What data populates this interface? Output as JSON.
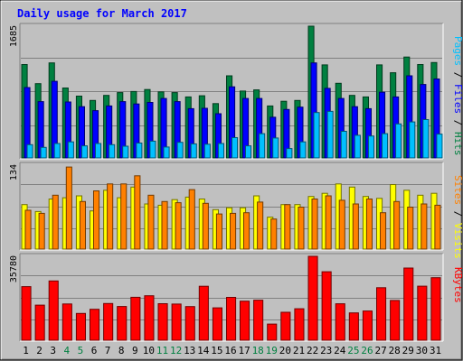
{
  "chart_data": [
    {
      "type": "bar",
      "title": "Daily usage for March 2017",
      "categories": [
        "1",
        "2",
        "3",
        "4",
        "5",
        "6",
        "7",
        "8",
        "9",
        "10",
        "11",
        "12",
        "13",
        "14",
        "15",
        "16",
        "17",
        "18",
        "19",
        "20",
        "21",
        "22",
        "23",
        "24",
        "25",
        "26",
        "27",
        "28",
        "29",
        "30",
        "31"
      ],
      "weekend_days": [
        "4",
        "5",
        "11",
        "12",
        "18",
        "19",
        "25",
        "26"
      ],
      "ymax_label": "1685",
      "ylim": [
        0,
        1685
      ],
      "legend": [
        "Pages",
        "Files",
        "Hits"
      ],
      "series": [
        {
          "name": "Hits",
          "color": "#008040",
          "values": [
            1195,
            950,
            1215,
            895,
            790,
            735,
            800,
            835,
            850,
            875,
            845,
            835,
            780,
            795,
            695,
            1050,
            855,
            870,
            665,
            725,
            735,
            1685,
            1190,
            955,
            800,
            780,
            1190,
            1090,
            1290,
            1195,
            1220
          ]
        },
        {
          "name": "Files",
          "color": "#0000ff",
          "values": [
            900,
            720,
            980,
            715,
            655,
            605,
            665,
            720,
            690,
            710,
            760,
            720,
            630,
            635,
            565,
            910,
            760,
            760,
            520,
            620,
            650,
            1215,
            890,
            760,
            655,
            630,
            840,
            780,
            1050,
            940,
            1010
          ]
        },
        {
          "name": "Pages",
          "color": "#00c0ff",
          "values": [
            170,
            135,
            185,
            205,
            155,
            185,
            170,
            150,
            190,
            215,
            140,
            200,
            180,
            175,
            185,
            260,
            155,
            310,
            255,
            120,
            205,
            580,
            595,
            340,
            290,
            280,
            310,
            435,
            460,
            490,
            305
          ]
        }
      ]
    },
    {
      "type": "bar",
      "ymax_label": "134",
      "ylim": [
        0,
        134
      ],
      "legend": [
        "Sites",
        "Visits"
      ],
      "series": [
        {
          "name": "Visits",
          "color": "#ffff00",
          "values": [
            71,
            60,
            80,
            82,
            85,
            61,
            94,
            82,
            99,
            72,
            70,
            79,
            83,
            80,
            63,
            66,
            66,
            85,
            51,
            71,
            71,
            84,
            89,
            104,
            99,
            84,
            81,
            103,
            94,
            86,
            89
          ]
        },
        {
          "name": "Sites",
          "color": "#ff8000",
          "values": [
            62,
            57,
            86,
            131,
            76,
            93,
            104,
            104,
            117,
            86,
            76,
            74,
            95,
            73,
            56,
            57,
            58,
            75,
            48,
            71,
            67,
            80,
            85,
            78,
            72,
            80,
            58,
            76,
            67,
            72,
            70
          ]
        }
      ]
    },
    {
      "type": "bar",
      "ymax_label": "35780",
      "ylim": [
        0,
        35780
      ],
      "legend": [
        "KBytes"
      ],
      "series": [
        {
          "name": "KBytes",
          "color": "#ff0000",
          "values": [
            22850,
            14960,
            25290,
            15470,
            11430,
            13210,
            15650,
            14390,
            18330,
            18970,
            15590,
            15410,
            14360,
            23010,
            13800,
            18280,
            16640,
            17090,
            6890,
            11910,
            13430,
            35780,
            29210,
            15550,
            11640,
            12450,
            22400,
            16980,
            30770,
            23030,
            26650
          ]
        }
      ]
    }
  ]
}
